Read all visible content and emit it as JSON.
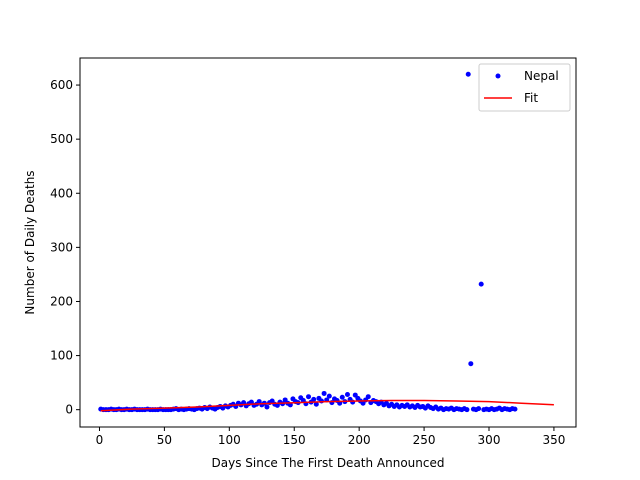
{
  "chart_data": {
    "type": "scatter",
    "title": "",
    "xlabel": "Days Since The First Death Announced",
    "ylabel": "Number of Daily Deaths",
    "xlim": [
      -15,
      367
    ],
    "ylim": [
      -32,
      650
    ],
    "xticks": [
      0,
      50,
      100,
      150,
      200,
      250,
      300,
      350
    ],
    "yticks": [
      0,
      100,
      200,
      300,
      400,
      500,
      600
    ],
    "grid": false,
    "legend": {
      "placement": "top-right",
      "entries": [
        "Nepal",
        "Fit"
      ]
    },
    "series": [
      {
        "name": "Nepal",
        "kind": "scatter",
        "color": "#0000ff",
        "points": [
          [
            1,
            1
          ],
          [
            3,
            0
          ],
          [
            5,
            0
          ],
          [
            7,
            0
          ],
          [
            9,
            1
          ],
          [
            11,
            0
          ],
          [
            13,
            0
          ],
          [
            15,
            1
          ],
          [
            17,
            0
          ],
          [
            19,
            0
          ],
          [
            21,
            1
          ],
          [
            23,
            0
          ],
          [
            25,
            0
          ],
          [
            27,
            1
          ],
          [
            29,
            0
          ],
          [
            31,
            0
          ],
          [
            33,
            0
          ],
          [
            35,
            0
          ],
          [
            37,
            1
          ],
          [
            39,
            0
          ],
          [
            41,
            0
          ],
          [
            43,
            0
          ],
          [
            45,
            0
          ],
          [
            47,
            1
          ],
          [
            49,
            0
          ],
          [
            51,
            0
          ],
          [
            53,
            0
          ],
          [
            55,
            0
          ],
          [
            57,
            1
          ],
          [
            59,
            2
          ],
          [
            61,
            0
          ],
          [
            63,
            1
          ],
          [
            65,
            0
          ],
          [
            67,
            1
          ],
          [
            69,
            2
          ],
          [
            71,
            1
          ],
          [
            73,
            0
          ],
          [
            75,
            2
          ],
          [
            77,
            3
          ],
          [
            79,
            1
          ],
          [
            81,
            4
          ],
          [
            83,
            2
          ],
          [
            85,
            5
          ],
          [
            87,
            3
          ],
          [
            89,
            1
          ],
          [
            91,
            4
          ],
          [
            93,
            6
          ],
          [
            95,
            3
          ],
          [
            97,
            7
          ],
          [
            99,
            5
          ],
          [
            101,
            8
          ],
          [
            103,
            10
          ],
          [
            105,
            6
          ],
          [
            107,
            12
          ],
          [
            109,
            9
          ],
          [
            111,
            13
          ],
          [
            113,
            7
          ],
          [
            115,
            11
          ],
          [
            117,
            14
          ],
          [
            119,
            8
          ],
          [
            121,
            10
          ],
          [
            123,
            15
          ],
          [
            125,
            9
          ],
          [
            127,
            12
          ],
          [
            129,
            5
          ],
          [
            131,
            13
          ],
          [
            133,
            16
          ],
          [
            135,
            10
          ],
          [
            137,
            8
          ],
          [
            139,
            14
          ],
          [
            141,
            11
          ],
          [
            143,
            18
          ],
          [
            145,
            12
          ],
          [
            147,
            9
          ],
          [
            149,
            20
          ],
          [
            151,
            15
          ],
          [
            153,
            13
          ],
          [
            155,
            22
          ],
          [
            157,
            17
          ],
          [
            159,
            11
          ],
          [
            161,
            24
          ],
          [
            163,
            14
          ],
          [
            165,
            19
          ],
          [
            167,
            10
          ],
          [
            169,
            21
          ],
          [
            171,
            16
          ],
          [
            173,
            30
          ],
          [
            175,
            18
          ],
          [
            177,
            25
          ],
          [
            179,
            13
          ],
          [
            181,
            20
          ],
          [
            183,
            17
          ],
          [
            185,
            12
          ],
          [
            187,
            23
          ],
          [
            189,
            15
          ],
          [
            191,
            28
          ],
          [
            193,
            19
          ],
          [
            195,
            14
          ],
          [
            197,
            27
          ],
          [
            199,
            21
          ],
          [
            201,
            16
          ],
          [
            203,
            12
          ],
          [
            205,
            18
          ],
          [
            207,
            24
          ],
          [
            209,
            13
          ],
          [
            211,
            17
          ],
          [
            213,
            15
          ],
          [
            215,
            11
          ],
          [
            217,
            14
          ],
          [
            219,
            9
          ],
          [
            221,
            12
          ],
          [
            223,
            7
          ],
          [
            225,
            10
          ],
          [
            227,
            6
          ],
          [
            229,
            9
          ],
          [
            231,
            5
          ],
          [
            233,
            8
          ],
          [
            235,
            6
          ],
          [
            237,
            9
          ],
          [
            239,
            5
          ],
          [
            241,
            7
          ],
          [
            243,
            4
          ],
          [
            245,
            8
          ],
          [
            247,
            5
          ],
          [
            249,
            6
          ],
          [
            251,
            3
          ],
          [
            253,
            7
          ],
          [
            255,
            4
          ],
          [
            257,
            2
          ],
          [
            259,
            5
          ],
          [
            261,
            1
          ],
          [
            263,
            3
          ],
          [
            265,
            0
          ],
          [
            267,
            2
          ],
          [
            269,
            1
          ],
          [
            271,
            3
          ],
          [
            273,
            0
          ],
          [
            275,
            2
          ],
          [
            277,
            1
          ],
          [
            279,
            0
          ],
          [
            281,
            2
          ],
          [
            283,
            0
          ],
          [
            284,
            620
          ],
          [
            286,
            85
          ],
          [
            288,
            1
          ],
          [
            290,
            0
          ],
          [
            292,
            2
          ],
          [
            294,
            232
          ],
          [
            296,
            0
          ],
          [
            298,
            1
          ],
          [
            300,
            0
          ],
          [
            302,
            2
          ],
          [
            304,
            0
          ],
          [
            306,
            1
          ],
          [
            308,
            3
          ],
          [
            310,
            0
          ],
          [
            312,
            2
          ],
          [
            314,
            1
          ],
          [
            316,
            0
          ],
          [
            318,
            2
          ],
          [
            320,
            1
          ]
        ]
      },
      {
        "name": "Fit",
        "kind": "line",
        "color": "#ff0000",
        "points": [
          [
            1,
            -2
          ],
          [
            25,
            1
          ],
          [
            50,
            3
          ],
          [
            75,
            5
          ],
          [
            100,
            8
          ],
          [
            125,
            11
          ],
          [
            150,
            13
          ],
          [
            175,
            15
          ],
          [
            200,
            16
          ],
          [
            225,
            17
          ],
          [
            250,
            17
          ],
          [
            275,
            16
          ],
          [
            300,
            15
          ],
          [
            325,
            12
          ],
          [
            350,
            9
          ]
        ]
      }
    ]
  }
}
